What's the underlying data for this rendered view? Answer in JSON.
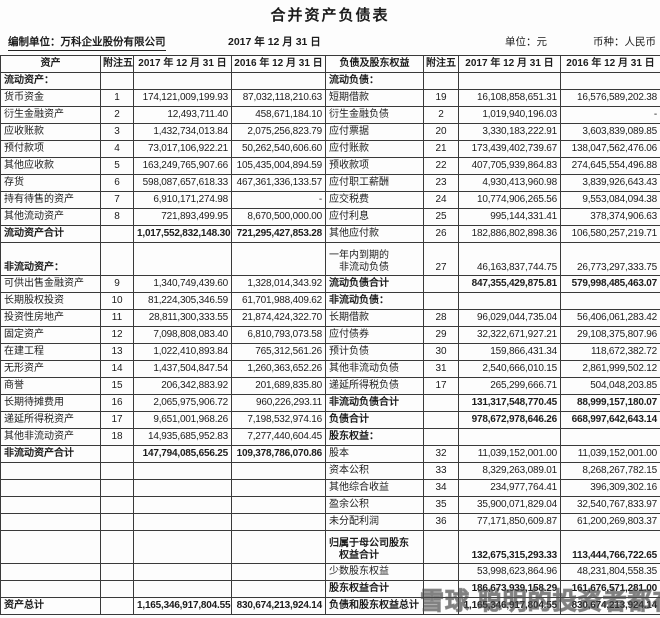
{
  "title": "合并资产负债表",
  "meta": {
    "prepared_by": "编制单位：万科企业股份有限公司",
    "date": "2017 年 12 月 31 日",
    "unit": "单位：元",
    "currency": "币种：人民币"
  },
  "table": {
    "left_header": [
      "资产",
      "附注五",
      "2017 年 12 月 31 日",
      "2016 年 12 月 31 日"
    ],
    "right_header": [
      "负债及股东权益",
      "附注五",
      "2017 年 12 月 31 日",
      "2016 年 12 月 31 日"
    ],
    "rows": [
      {
        "l": {
          "label": "流动资产：",
          "sec": true
        },
        "r": {
          "label": "流动负债：",
          "sec": true
        }
      },
      {
        "l": {
          "label": "货币资金",
          "note": "1",
          "a": "174,121,009,199.93",
          "b": "87,032,118,210.63"
        },
        "r": {
          "label": "短期借款",
          "note": "19",
          "a": "16,108,858,651.31",
          "b": "16,576,589,202.38"
        }
      },
      {
        "l": {
          "label": "衍生金融资产",
          "note": "2",
          "a": "12,493,711.40",
          "b": "458,671,184.10"
        },
        "r": {
          "label": "衍生金融负债",
          "note": "2",
          "a": "1,019,940,196.03",
          "b": "-"
        }
      },
      {
        "l": {
          "label": "应收账款",
          "note": "3",
          "a": "1,432,734,013.84",
          "b": "2,075,256,823.79"
        },
        "r": {
          "label": "应付票据",
          "note": "20",
          "a": "3,330,183,222.91",
          "b": "3,603,839,089.85"
        }
      },
      {
        "l": {
          "label": "预付款项",
          "note": "4",
          "a": "73,017,106,922.21",
          "b": "50,262,540,606.60"
        },
        "r": {
          "label": "应付账款",
          "note": "21",
          "a": "173,439,402,739.67",
          "b": "138,047,562,476.06"
        }
      },
      {
        "l": {
          "label": "其他应收款",
          "note": "5",
          "a": "163,249,765,907.66",
          "b": "105,435,004,894.59"
        },
        "r": {
          "label": "预收款项",
          "note": "22",
          "a": "407,705,939,864.83",
          "b": "274,645,554,496.88"
        }
      },
      {
        "l": {
          "label": "存货",
          "note": "6",
          "a": "598,087,657,618.33",
          "b": "467,361,336,133.57"
        },
        "r": {
          "label": "应付职工薪酬",
          "note": "23",
          "a": "4,930,413,960.98",
          "b": "3,839,926,643.43"
        }
      },
      {
        "l": {
          "label": "持有待售的资产",
          "note": "7",
          "a": "6,910,171,274.98",
          "b": "-"
        },
        "r": {
          "label": "应交税费",
          "note": "24",
          "a": "10,774,906,265.56",
          "b": "9,553,084,094.38"
        }
      },
      {
        "l": {
          "label": "其他流动资产",
          "note": "8",
          "a": "721,893,499.95",
          "b": "8,670,500,000.00"
        },
        "r": {
          "label": "应付利息",
          "note": "25",
          "a": "995,144,331.41",
          "b": "378,374,906.63"
        }
      },
      {
        "l": {
          "label": "流动资产合计",
          "bold": true,
          "a": "1,017,552,832,148.30",
          "b": "721,295,427,853.28"
        },
        "r": {
          "label": "其他应付款",
          "note": "26",
          "a": "182,886,802,898.36",
          "b": "106,580,257,219.71"
        }
      },
      {
        "tall": true,
        "l": {
          "label2": [
            "",
            "非流动资产："
          ],
          "sec": true
        },
        "r": {
          "label2": [
            "一年内到期的",
            "　非流动负债"
          ],
          "note": "27",
          "a": "46,163,837,744.75",
          "b": "26,773,297,333.75"
        }
      },
      {
        "l": {
          "label": "可供出售金融资产",
          "note": "9",
          "a": "1,340,749,439.60",
          "b": "1,328,014,343.92"
        },
        "r": {
          "label": "流动负债合计",
          "bold": true,
          "a": "847,355,429,875.81",
          "b": "579,998,485,463.07"
        }
      },
      {
        "l": {
          "label": "长期股权投资",
          "note": "10",
          "a": "81,224,305,346.59",
          "b": "61,701,988,409.62"
        },
        "r": {
          "label": "非流动负债：",
          "sec": true
        }
      },
      {
        "l": {
          "label": "投资性房地产",
          "note": "11",
          "a": "28,811,300,333.55",
          "b": "21,874,424,322.70"
        },
        "r": {
          "label": "长期借款",
          "note": "28",
          "a": "96,029,044,735.04",
          "b": "56,406,061,283.42"
        }
      },
      {
        "l": {
          "label": "固定资产",
          "note": "12",
          "a": "7,098,808,083.40",
          "b": "6,810,793,073.58"
        },
        "r": {
          "label": "应付债券",
          "note": "29",
          "a": "32,322,671,927.21",
          "b": "29,108,375,807.96"
        }
      },
      {
        "l": {
          "label": "在建工程",
          "note": "13",
          "a": "1,022,410,893.84",
          "b": "765,312,561.26"
        },
        "r": {
          "label": "预计负债",
          "note": "30",
          "a": "159,866,431.34",
          "b": "118,672,382.72"
        }
      },
      {
        "l": {
          "label": "无形资产",
          "note": "14",
          "a": "1,437,504,847.54",
          "b": "1,260,363,652.26"
        },
        "r": {
          "label": "其他非流动负债",
          "note": "31",
          "a": "2,540,666,010.15",
          "b": "2,861,999,502.12"
        }
      },
      {
        "l": {
          "label": "商誉",
          "note": "15",
          "a": "206,342,883.92",
          "b": "201,689,835.80"
        },
        "r": {
          "label": "递延所得税负债",
          "note": "17",
          "a": "265,299,666.71",
          "b": "504,048,203.85"
        }
      },
      {
        "l": {
          "label": "长期待摊费用",
          "note": "16",
          "a": "2,065,975,906.72",
          "b": "960,226,293.11"
        },
        "r": {
          "label": "非流动负债合计",
          "bold": true,
          "a": "131,317,548,770.45",
          "b": "88,999,157,180.07"
        }
      },
      {
        "l": {
          "label": "递延所得税资产",
          "note": "17",
          "a": "9,651,001,968.26",
          "b": "7,198,532,974.16"
        },
        "r": {
          "label": "负债合计",
          "bold": true,
          "a": "978,672,978,646.26",
          "b": "668,997,642,643.14"
        }
      },
      {
        "l": {
          "label": "其他非流动资产",
          "note": "18",
          "a": "14,935,685,952.83",
          "b": "7,277,440,604.45"
        },
        "r": {
          "label": "股东权益：",
          "sec": true
        }
      },
      {
        "l": {
          "label": "非流动资产合计",
          "bold": true,
          "a": "147,794,085,656.25",
          "b": "109,378,786,070.86"
        },
        "r": {
          "label": "股本",
          "note": "32",
          "a": "11,039,152,001.00",
          "b": "11,039,152,001.00"
        }
      },
      {
        "l": {},
        "r": {
          "label": "资本公积",
          "note": "33",
          "a": "8,329,263,089.01",
          "b": "8,268,267,782.15"
        }
      },
      {
        "l": {},
        "r": {
          "label": "其他综合收益",
          "note": "34",
          "a": "234,977,764.41",
          "b": "396,309,302.16"
        }
      },
      {
        "l": {},
        "r": {
          "label": "盈余公积",
          "note": "35",
          "a": "35,900,071,829.04",
          "b": "32,540,767,833.97"
        }
      },
      {
        "l": {},
        "r": {
          "label": "未分配利润",
          "note": "36",
          "a": "77,171,850,609.87",
          "b": "61,200,269,803.37"
        }
      },
      {
        "tall": true,
        "l": {},
        "r": {
          "label2": [
            "归属于母公司股东",
            "　权益合计"
          ],
          "bold": true,
          "a": "132,675,315,293.33",
          "b": "113,444,766,722.65"
        }
      },
      {
        "l": {},
        "r": {
          "label": "少数股东权益",
          "a": "53,998,623,864.96",
          "b": "48,231,804,558.35"
        }
      },
      {
        "l": {},
        "r": {
          "label": "股东权益合计",
          "bold": true,
          "a": "186,673,939,158.29",
          "b": "161,676,571,281.00"
        }
      },
      {
        "l": {
          "label": "资产总计",
          "bold": true,
          "a": "1,165,346,917,804.55",
          "b": "830,674,213,924.14"
        },
        "r": {
          "label": "负债和股东权益总计",
          "bold": true,
          "a": "1,165,346,917,804.55",
          "b": "830,674,213,924.14"
        }
      }
    ]
  },
  "watermark": {
    "logo": "xueqiu-snowball-logo",
    "text": "雪球 聪明的投资者都在这里"
  },
  "colors": {
    "background": "#fdfdfd",
    "text": "#1c1c1c",
    "border": "#3a3a3a",
    "watermark": "rgba(70,70,70,0.55)"
  }
}
